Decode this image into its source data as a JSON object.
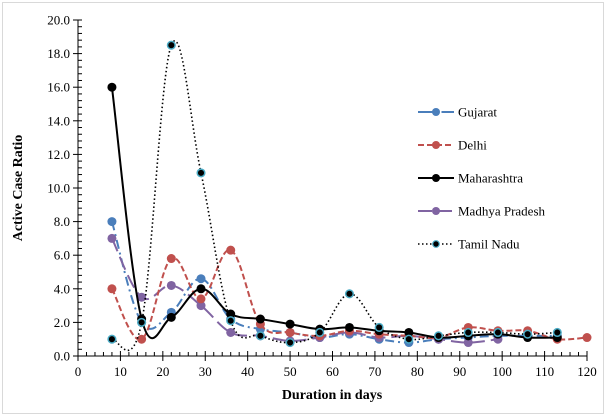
{
  "chart_data": {
    "type": "line",
    "title": "",
    "xlabel": "Duration in days",
    "ylabel": "Active Case Ratio",
    "xlim": [
      0,
      120
    ],
    "ylim": [
      0,
      20
    ],
    "x_ticks": [
      "0",
      "10",
      "20",
      "30",
      "40",
      "50",
      "60",
      "70",
      "80",
      "90",
      "100",
      "110",
      "120"
    ],
    "y_ticks": [
      "0.0",
      "2.0",
      "4.0",
      "6.0",
      "8.0",
      "10.0",
      "12.0",
      "14.0",
      "16.0",
      "18.0",
      "20.0"
    ],
    "grid": false,
    "legend_position": "right",
    "series": [
      {
        "name": "Gujarat",
        "color": "#4a7ebb",
        "dash": "dash-dot",
        "x": [
          8,
          15,
          22,
          29,
          36,
          43,
          50,
          57,
          64,
          71,
          78,
          85,
          92,
          99,
          106,
          113
        ],
        "y": [
          8.0,
          2.0,
          2.6,
          4.6,
          2.2,
          1.6,
          1.4,
          1.1,
          1.3,
          1.0,
          0.8,
          1.0,
          1.1,
          1.2,
          1.2,
          1.2
        ]
      },
      {
        "name": "Delhi",
        "color": "#c0504d",
        "dash": "dash",
        "x": [
          8,
          15,
          22,
          29,
          36,
          43,
          50,
          57,
          64,
          71,
          78,
          85,
          92,
          99,
          106,
          113,
          120
        ],
        "y": [
          4.0,
          1.0,
          5.8,
          3.4,
          6.3,
          1.9,
          1.4,
          1.2,
          1.5,
          1.3,
          1.2,
          1.1,
          1.7,
          1.5,
          1.5,
          1.0,
          1.1
        ]
      },
      {
        "name": "Maharashtra",
        "color": "#000000",
        "dash": "solid",
        "x": [
          8,
          15,
          22,
          29,
          36,
          43,
          50,
          57,
          64,
          71,
          78,
          85,
          92,
          99,
          106,
          113
        ],
        "y": [
          16.0,
          2.2,
          2.3,
          4.0,
          2.5,
          2.2,
          1.9,
          1.6,
          1.7,
          1.5,
          1.4,
          1.1,
          1.2,
          1.3,
          1.1,
          1.1
        ]
      },
      {
        "name": "Madhya Pradesh",
        "color": "#8064a2",
        "dash": "long-dash",
        "x": [
          8,
          15,
          22,
          29,
          36,
          43,
          50,
          57,
          64,
          71,
          78,
          85,
          92,
          99
        ],
        "y": [
          7.0,
          3.5,
          4.2,
          3.0,
          1.4,
          1.2,
          0.9,
          1.1,
          1.4,
          1.1,
          1.2,
          1.0,
          0.8,
          1.0
        ]
      },
      {
        "name": "Tamil Nadu",
        "color": "#000000",
        "marker_edge": "#4bacc6",
        "dash": "dot",
        "x": [
          8,
          15,
          22,
          29,
          36,
          43,
          50,
          57,
          64,
          71,
          78,
          85,
          92,
          99,
          106,
          113
        ],
        "y": [
          1.0,
          2.0,
          18.5,
          10.9,
          2.1,
          1.2,
          0.8,
          1.4,
          3.7,
          1.7,
          1.0,
          1.2,
          1.4,
          1.4,
          1.3,
          1.4
        ]
      }
    ]
  }
}
